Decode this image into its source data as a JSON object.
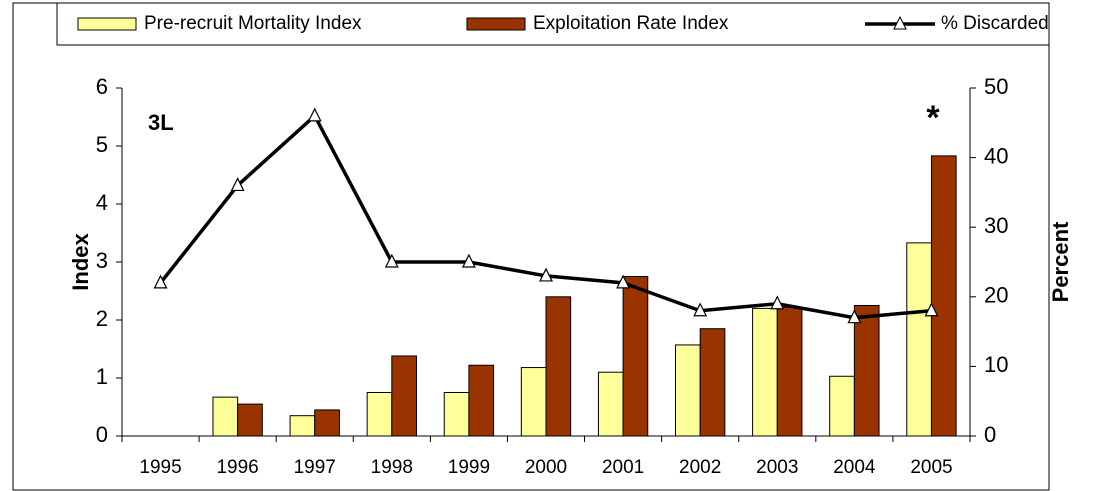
{
  "chart_data": {
    "type": "bar-line",
    "categories": [
      "1995",
      "1996",
      "1997",
      "1998",
      "1999",
      "2000",
      "2001",
      "2002",
      "2003",
      "2004",
      "2005"
    ],
    "series": [
      {
        "name": "Pre-recruit Mortality Index",
        "color": "#ffff99",
        "type": "bar",
        "values": [
          null,
          0.67,
          0.35,
          0.75,
          0.75,
          1.18,
          1.1,
          1.57,
          2.2,
          1.03,
          3.33
        ]
      },
      {
        "name": "Exploitation Rate Index",
        "color": "#993300",
        "type": "bar",
        "values": [
          null,
          0.55,
          0.45,
          1.38,
          1.22,
          2.4,
          2.75,
          1.85,
          2.22,
          2.25,
          4.83
        ]
      },
      {
        "name": "% Discarded",
        "color": "#000000",
        "type": "line",
        "axis": "y2",
        "values": [
          22,
          36,
          46,
          25,
          25,
          23,
          22,
          18,
          19,
          17,
          18
        ]
      }
    ],
    "ylabel": "Index",
    "y2label": "Percent",
    "ylim": [
      0,
      6
    ],
    "yticks": [
      0,
      1,
      2,
      3,
      4,
      5,
      6
    ],
    "y2lim": [
      0,
      50
    ],
    "y2ticks": [
      0,
      10,
      20,
      30,
      40,
      50
    ],
    "annotations": [
      "3L",
      "*"
    ],
    "legend": "top",
    "grid": false
  }
}
